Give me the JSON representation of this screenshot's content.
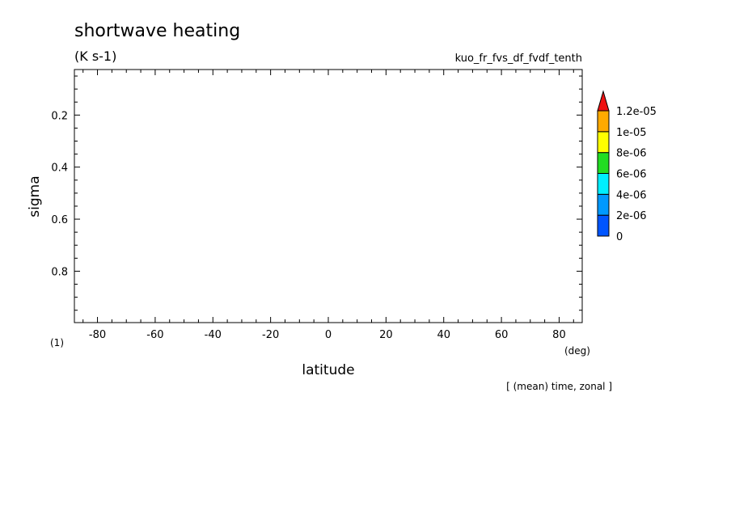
{
  "chart_data": {
    "type": "heatmap",
    "title": "shortwave heating",
    "units": "(K s-1)",
    "experiment": "kuo_fr_fvs_df_fvdf_tenth",
    "xlabel": "latitude",
    "xunits": "(deg)",
    "ylabel": "sigma",
    "yunits": "(1)",
    "footnote": "[ (mean) time, zonal ]",
    "xlim": [
      -88,
      88
    ],
    "ylim": [
      0.025,
      0.9975
    ],
    "y_inverted": true,
    "x_ticks": [
      -80,
      -60,
      -40,
      -20,
      0,
      20,
      40,
      60,
      80
    ],
    "x_tick_labels": [
      "-80",
      "-60",
      "-40",
      "-20",
      "0",
      "20",
      "40",
      "60",
      "80"
    ],
    "y_ticks": [
      0.2,
      0.4,
      0.6,
      0.8
    ],
    "y_tick_labels": [
      "0.2",
      "0.4",
      "0.6",
      "0.8"
    ],
    "fields": [],
    "colorbar": {
      "levels": [
        "0",
        "2e-06",
        "4e-06",
        "6e-06",
        "8e-06",
        "1e-05",
        "1.2e-05"
      ],
      "colors": [
        "#0055ff",
        "#0099ff",
        "#00eeff",
        "#22dd22",
        "#ffff00",
        "#ffaa00"
      ],
      "extend_color": "#ee1111"
    }
  }
}
